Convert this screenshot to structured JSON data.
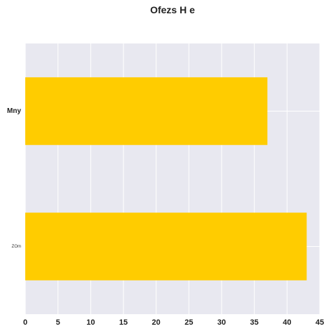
{
  "chart_data": {
    "type": "bar",
    "orientation": "horizontal",
    "title": "Ofezs H e",
    "categories": [
      "Mny",
      "ZOm"
    ],
    "values": [
      37,
      43
    ],
    "xlim": [
      0,
      45
    ],
    "x_ticks": [
      0,
      5,
      10,
      15,
      20,
      25,
      30,
      35,
      40,
      45
    ],
    "xlabel": "",
    "ylabel": "",
    "grid": true,
    "colors": {
      "bar": "#ffcc00",
      "plot_background": "#e8e8f0",
      "grid": "#ffffff"
    }
  }
}
